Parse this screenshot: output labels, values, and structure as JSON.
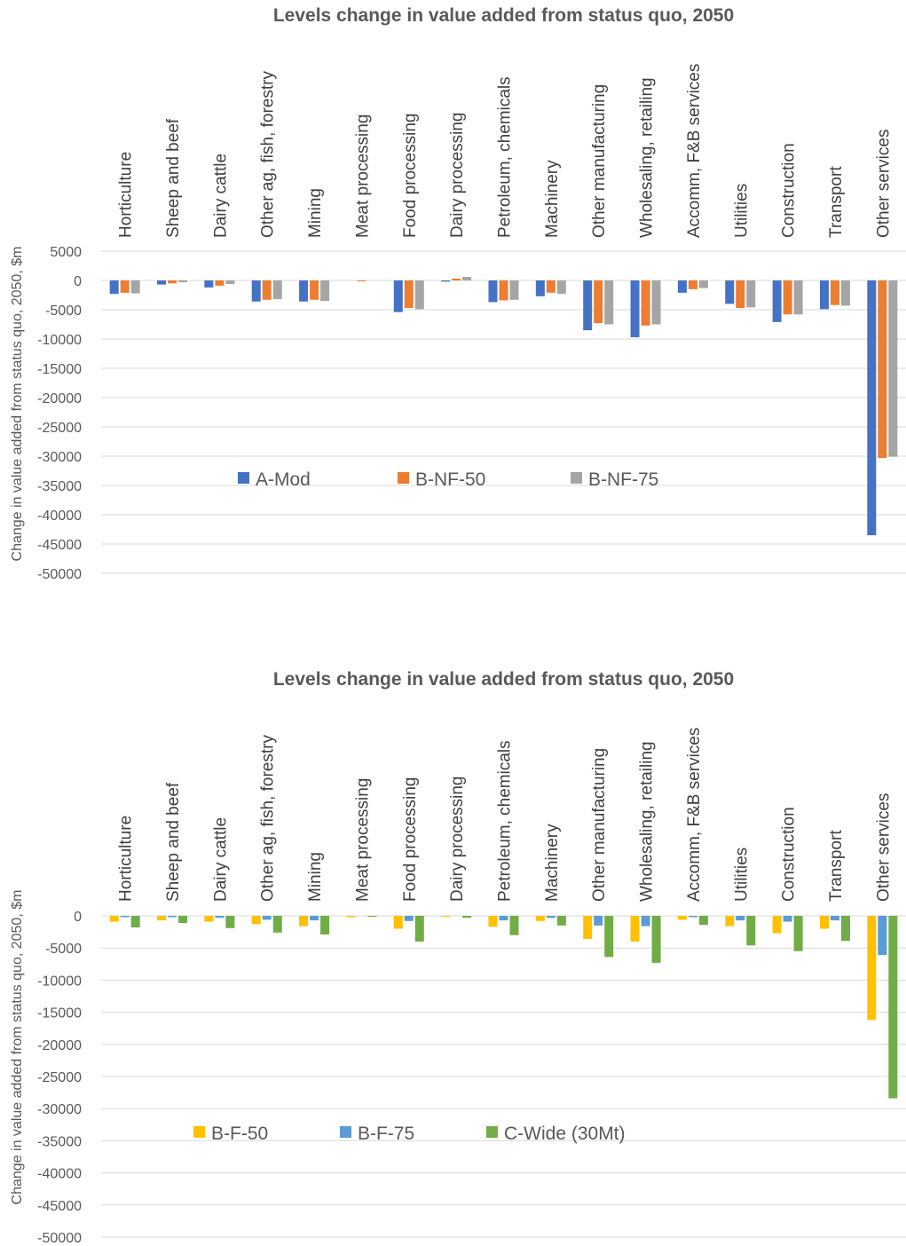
{
  "chart_data": [
    {
      "type": "bar",
      "title": "Levels change in value added from status quo, 2050",
      "ylabel": "Change in value added from status quo, 2050, $m",
      "xlabel": "",
      "ylim": [
        -50000,
        5000
      ],
      "yticks": [
        5000,
        0,
        -5000,
        -10000,
        -15000,
        -20000,
        -25000,
        -30000,
        -35000,
        -40000,
        -45000,
        -50000
      ],
      "grid": true,
      "legend_position": "inside-lower-left",
      "categories": [
        "Horticulture",
        "Sheep and beef",
        "Dairy cattle",
        "Other ag, fish, forestry",
        "Mining",
        "Meat processing",
        "Food processing",
        "Dairy processing",
        "Petroleum, chemicals",
        "Machinery",
        "Other manufacturing",
        "Wholesaling, retailing",
        "Accomm, F&B services",
        "Utilities",
        "Construction",
        "Transport",
        "Other services"
      ],
      "series": [
        {
          "name": "A-Mod",
          "color": "#4472c4",
          "values": [
            -2300,
            -700,
            -1200,
            -3600,
            -3600,
            0,
            -5400,
            -200,
            -3700,
            -2700,
            -8500,
            -9700,
            -2100,
            -4000,
            -7100,
            -4900,
            -43500
          ]
        },
        {
          "name": "B-NF-50",
          "color": "#ed7d31",
          "values": [
            -2100,
            -500,
            -900,
            -3300,
            -3300,
            -100,
            -4700,
            300,
            -3400,
            -2100,
            -7300,
            -7700,
            -1500,
            -4700,
            -5800,
            -4200,
            -30300
          ]
        },
        {
          "name": "B-NF-75",
          "color": "#a5a5a5",
          "values": [
            -2200,
            -300,
            -600,
            -3200,
            -3500,
            0,
            -4900,
            600,
            -3300,
            -2300,
            -7500,
            -7500,
            -1300,
            -4600,
            -5800,
            -4300,
            -30100
          ]
        }
      ]
    },
    {
      "type": "bar",
      "title": "Levels change in value added from status quo, 2050",
      "ylabel": "Change in value added from status quo, 2050, $m",
      "xlabel": "",
      "ylim": [
        -50000,
        0
      ],
      "yticks": [
        0,
        -5000,
        -10000,
        -15000,
        -20000,
        -25000,
        -30000,
        -35000,
        -40000,
        -45000,
        -50000
      ],
      "grid": true,
      "legend_position": "inside-lower-left",
      "categories": [
        "Horticulture",
        "Sheep and beef",
        "Dairy cattle",
        "Other ag, fish, forestry",
        "Mining",
        "Meat processing",
        "Food processing",
        "Dairy processing",
        "Petroleum, chemicals",
        "Machinery",
        "Other manufacturing",
        "Wholesaling, retailing",
        "Accomm, F&B services",
        "Utilities",
        "Construction",
        "Transport",
        "Other services"
      ],
      "series": [
        {
          "name": "B-F-50",
          "color": "#ffc000",
          "values": [
            -900,
            -700,
            -900,
            -1300,
            -1600,
            -200,
            -2000,
            -100,
            -1700,
            -800,
            -3600,
            -4000,
            -600,
            -1600,
            -2700,
            -2000,
            -16200
          ]
        },
        {
          "name": "B-F-75",
          "color": "#5b9bd5",
          "values": [
            -200,
            -200,
            -300,
            -600,
            -700,
            0,
            -800,
            0,
            -700,
            -300,
            -1500,
            -1600,
            -200,
            -700,
            -900,
            -700,
            -6100
          ]
        },
        {
          "name": "C-Wide (30Mt)",
          "color": "#70ad47",
          "values": [
            -1800,
            -1100,
            -1900,
            -2600,
            -2900,
            -100,
            -4000,
            -300,
            -3000,
            -1500,
            -6400,
            -7300,
            -1400,
            -4600,
            -5500,
            -3900,
            -28400
          ]
        }
      ]
    }
  ]
}
